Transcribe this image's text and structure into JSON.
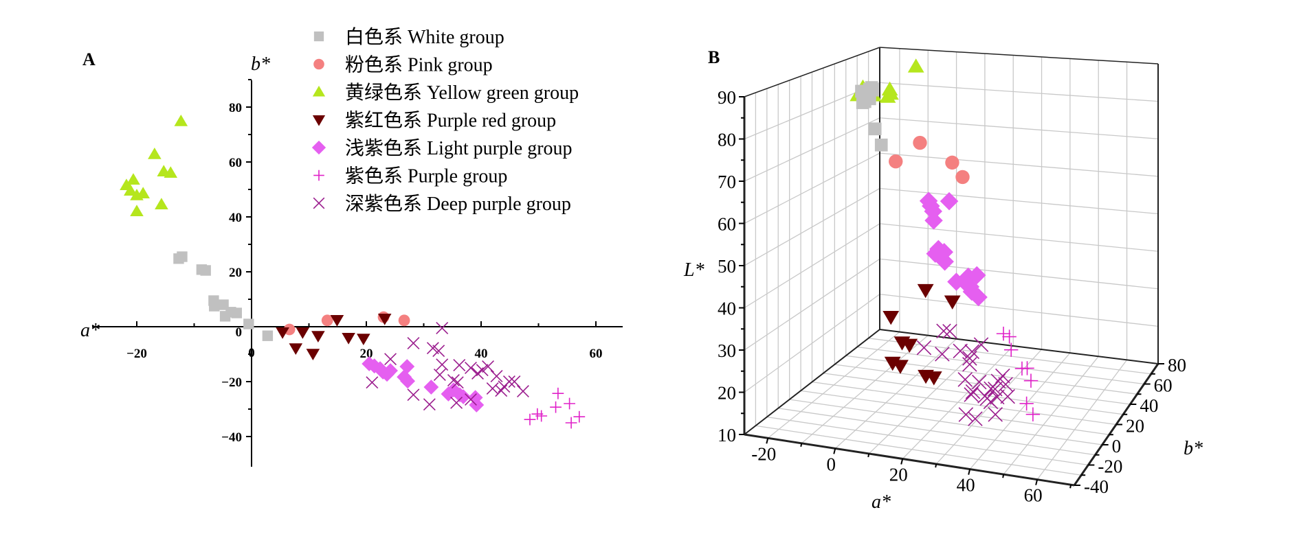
{
  "chart_data": [
    {
      "type": "scatter",
      "panel_label": "A",
      "xlabel": "a*",
      "ylabel": "b*",
      "xlim": [
        -24,
        64
      ],
      "ylim": [
        -50,
        92
      ],
      "x_ticks": [
        -20,
        0,
        20,
        40,
        60
      ],
      "y_ticks": [
        -40,
        -20,
        0,
        20,
        40,
        60,
        80
      ],
      "grid": false,
      "legend_position": "top-center",
      "series": [
        {
          "key": "white",
          "name": "白色系 White group",
          "marker": "square",
          "color": "#c0c0c0",
          "points": [
            [
              -12.7,
              24.8
            ],
            [
              -12.1,
              25.5
            ],
            [
              -8.7,
              20.8
            ],
            [
              -8.0,
              20.5
            ],
            [
              -6.6,
              9.5
            ],
            [
              -6.5,
              7.5
            ],
            [
              -4.9,
              8.0
            ],
            [
              -4.6,
              3.8
            ],
            [
              -3.6,
              5.3
            ],
            [
              -2.6,
              5.0
            ],
            [
              -0.5,
              1.0
            ],
            [
              2.8,
              -3.3
            ]
          ]
        },
        {
          "key": "pink",
          "name": "粉色系 Pink group",
          "marker": "circle",
          "color": "#f48080",
          "points": [
            [
              6.6,
              -1.0
            ],
            [
              13.2,
              2.3
            ],
            [
              23.0,
              3.5
            ],
            [
              26.6,
              2.3
            ]
          ]
        },
        {
          "key": "yellowgreen",
          "name": "黄绿色系 Yellow green group",
          "marker": "triangle-up",
          "color": "#b5e61d",
          "points": [
            [
              -12.3,
              74.8
            ],
            [
              -16.9,
              62.8
            ],
            [
              -15.3,
              56.5
            ],
            [
              -14.1,
              56.0
            ],
            [
              -20.6,
              53.5
            ],
            [
              -21.8,
              51.5
            ],
            [
              -21.1,
              49.5
            ],
            [
              -20.0,
              47.8
            ],
            [
              -18.9,
              48.5
            ],
            [
              -15.7,
              44.5
            ],
            [
              -20.0,
              42.0
            ]
          ]
        },
        {
          "key": "purplered",
          "name": "紫红色系 Purple red group",
          "marker": "triangle-down",
          "color": "#6b0000",
          "points": [
            [
              5.4,
              -2.0
            ],
            [
              8.9,
              -2.0
            ],
            [
              11.6,
              -3.3
            ],
            [
              14.9,
              2.5
            ],
            [
              7.7,
              -7.8
            ],
            [
              10.7,
              -9.8
            ],
            [
              16.9,
              -4.0
            ],
            [
              19.5,
              -4.3
            ],
            [
              23.2,
              3.0
            ]
          ]
        },
        {
          "key": "lightpurple",
          "name": "浅紫色系 Light purple group",
          "marker": "diamond",
          "color": "#e55ff0",
          "points": [
            [
              20.5,
              -13.5
            ],
            [
              21.4,
              -14.3
            ],
            [
              22.4,
              -15.3
            ],
            [
              22.9,
              -16.5
            ],
            [
              23.6,
              -17.3
            ],
            [
              24.2,
              -16.0
            ],
            [
              27.1,
              -14.5
            ],
            [
              26.6,
              -18.3
            ],
            [
              27.2,
              -19.8
            ],
            [
              31.3,
              -22.0
            ],
            [
              34.3,
              -24.5
            ],
            [
              35.2,
              -23.0
            ],
            [
              36.3,
              -24.8
            ],
            [
              36.9,
              -25.5
            ],
            [
              39.0,
              -25.8
            ],
            [
              39.2,
              -28.5
            ]
          ]
        },
        {
          "key": "purple",
          "name": "紫色系 Purple group",
          "marker": "plus",
          "color": "#e020c8",
          "points": [
            [
              48.5,
              -33.8
            ],
            [
              49.8,
              -31.8
            ],
            [
              50.5,
              -32.5
            ],
            [
              53.0,
              -29.3
            ],
            [
              53.4,
              -24.3
            ],
            [
              55.4,
              -28.0
            ],
            [
              55.7,
              -35.0
            ],
            [
              57.1,
              -32.8
            ]
          ]
        },
        {
          "key": "deeppurple",
          "name": "深紫色系 Deep purple group",
          "marker": "x",
          "color": "#9b1d8e",
          "points": [
            [
              33.2,
              -0.5
            ],
            [
              28.2,
              -6.0
            ],
            [
              31.6,
              -7.8
            ],
            [
              32.6,
              -8.8
            ],
            [
              33.2,
              -13.8
            ],
            [
              24.2,
              -11.8
            ],
            [
              21.0,
              -20.3
            ],
            [
              28.2,
              -24.8
            ],
            [
              31.0,
              -28.3
            ],
            [
              35.2,
              -19.5
            ],
            [
              35.9,
              -20.3
            ],
            [
              32.8,
              -17.5
            ],
            [
              36.2,
              -14.0
            ],
            [
              38.2,
              -15.0
            ],
            [
              40.2,
              -15.8
            ],
            [
              41.2,
              -14.5
            ],
            [
              39.4,
              -17.0
            ],
            [
              42.7,
              -18.0
            ],
            [
              45.8,
              -20.0
            ],
            [
              44.9,
              -20.0
            ],
            [
              42.0,
              -22.5
            ],
            [
              44.0,
              -21.8
            ],
            [
              47.3,
              -23.5
            ],
            [
              35.7,
              -27.7
            ],
            [
              43.5,
              -23.3
            ],
            [
              38.2,
              -26.5
            ]
          ]
        }
      ]
    },
    {
      "type": "scatter3d",
      "panel_label": "B",
      "xlabel": "a*",
      "ylabel": "b*",
      "zlabel": "L*",
      "xlim": [
        -27,
        71
      ],
      "ylim": [
        -40,
        80
      ],
      "zlim": [
        10,
        90
      ],
      "x_ticks": [
        -20,
        0,
        20,
        40,
        60
      ],
      "y_ticks": [
        -40,
        -20,
        0,
        20,
        40,
        60,
        80
      ],
      "z_ticks": [
        10,
        20,
        30,
        40,
        50,
        60,
        70,
        80,
        90
      ],
      "grid": true,
      "series": [
        {
          "key": "white",
          "points": [
            [
              -12.7,
              24.8,
              86
            ],
            [
              -12.1,
              25.5,
              84
            ],
            [
              -8.7,
              20.8,
              85
            ],
            [
              -8.0,
              20.5,
              88
            ],
            [
              -6.6,
              9.5,
              88
            ],
            [
              -6.5,
              7.5,
              86
            ],
            [
              -4.9,
              8.0,
              88
            ],
            [
              -4.6,
              3.8,
              87
            ],
            [
              -3.6,
              5.3,
              90
            ],
            [
              -2.6,
              5.0,
              90
            ],
            [
              -0.5,
              1.0,
              81
            ],
            [
              2.8,
              -3.3,
              78
            ]
          ]
        },
        {
          "key": "pink",
          "points": [
            [
              6.6,
              -1.0,
              74
            ],
            [
              13.2,
              2.3,
              79
            ],
            [
              23.0,
              3.5,
              75
            ],
            [
              26.6,
              2.3,
              72
            ]
          ]
        },
        {
          "key": "yellowgreen",
          "points": [
            [
              -12.3,
              74.8,
              86
            ],
            [
              -16.9,
              62.8,
              81
            ],
            [
              -15.3,
              56.5,
              80
            ],
            [
              -14.1,
              56.0,
              81
            ],
            [
              -20.6,
              53.5,
              82
            ],
            [
              -21.8,
              51.5,
              82
            ],
            [
              -21.1,
              49.5,
              83
            ],
            [
              -20.0,
              47.8,
              81
            ],
            [
              -18.9,
              48.5,
              83
            ],
            [
              -15.7,
              44.5,
              82
            ],
            [
              -20.0,
              42.0,
              82
            ]
          ]
        },
        {
          "key": "purplered",
          "points": [
            [
              5.4,
              -2.0,
              35
            ],
            [
              8.9,
              -2.0,
              29
            ],
            [
              11.6,
              -3.3,
              29
            ],
            [
              14.9,
              2.5,
              42
            ],
            [
              7.7,
              -7.8,
              25
            ],
            [
              10.7,
              -9.8,
              25
            ],
            [
              16.9,
              -4.0,
              22
            ],
            [
              19.5,
              -4.3,
              22
            ],
            [
              23.2,
              3.0,
              40
            ]
          ]
        },
        {
          "key": "lightpurple",
          "points": [
            [
              20.5,
              -13.5,
              68
            ],
            [
              21.4,
              -14.3,
              67
            ],
            [
              22.4,
              -15.3,
              66
            ],
            [
              22.9,
              -16.5,
              64
            ],
            [
              23.6,
              -17.3,
              56
            ],
            [
              24.2,
              -16.0,
              57
            ],
            [
              27.1,
              -14.5,
              69
            ],
            [
              26.6,
              -18.3,
              57
            ],
            [
              27.2,
              -19.8,
              55
            ],
            [
              31.3,
              -22.0,
              51
            ],
            [
              34.3,
              -24.5,
              52
            ],
            [
              35.2,
              -23.0,
              53
            ],
            [
              36.3,
              -24.8,
              51
            ],
            [
              36.9,
              -25.5,
              50
            ],
            [
              39.0,
              -25.8,
              49
            ],
            [
              39.2,
              -28.5,
              55
            ]
          ]
        },
        {
          "key": "purple",
          "points": [
            [
              48.5,
              -33.8,
              43
            ],
            [
              49.8,
              -31.8,
              42
            ],
            [
              50.5,
              -32.5,
              39
            ],
            [
              53.0,
              -29.3,
              34
            ],
            [
              53.4,
              -24.3,
              33
            ],
            [
              55.4,
              -28.0,
              31
            ],
            [
              55.7,
              -35.0,
              27
            ],
            [
              57.1,
              -32.8,
              24
            ]
          ]
        },
        {
          "key": "deeppurple",
          "points": [
            [
              33.2,
              -0.5,
              31
            ],
            [
              28.2,
              -6.0,
              30
            ],
            [
              31.6,
              -7.8,
              29
            ],
            [
              32.6,
              -8.8,
              31
            ],
            [
              33.2,
              -13.8,
              29
            ],
            [
              24.2,
              -11.8,
              30
            ],
            [
              21.0,
              -20.3,
              33
            ],
            [
              28.2,
              -24.8,
              39
            ],
            [
              31.0,
              -28.3,
              40
            ],
            [
              35.2,
              -19.5,
              23
            ],
            [
              35.9,
              -20.3,
              24
            ],
            [
              32.8,
              -17.5,
              26
            ],
            [
              36.2,
              -14.0,
              25
            ],
            [
              38.2,
              -15.0,
              22
            ],
            [
              40.2,
              -15.8,
              21
            ],
            [
              41.2,
              -14.5,
              24
            ],
            [
              39.4,
              -17.0,
              22
            ],
            [
              42.7,
              -18.0,
              23
            ],
            [
              45.8,
              -20.0,
              27
            ],
            [
              44.9,
              -20.0,
              29
            ],
            [
              42.0,
              -22.5,
              26
            ],
            [
              44.0,
              -21.8,
              28
            ],
            [
              47.3,
              -23.5,
              25
            ],
            [
              35.7,
              -27.7,
              20
            ],
            [
              43.5,
              -23.3,
              20
            ],
            [
              38.2,
              -26.5,
              19
            ]
          ]
        }
      ]
    }
  ]
}
